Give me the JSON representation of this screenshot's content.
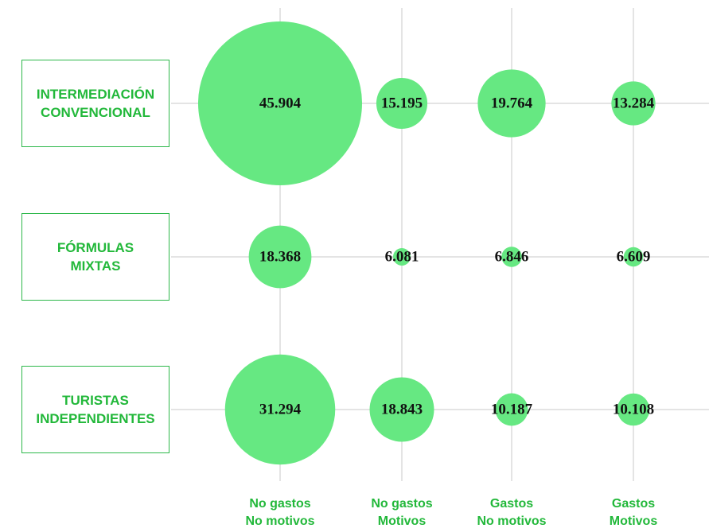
{
  "chart_data": {
    "type": "bubble",
    "categories": [
      "No gastos\nNo motivos",
      "No gastos\nMotivos",
      "Gastos\nNo motivos",
      "Gastos\nMotivos"
    ],
    "color": "#66e882",
    "series": [
      {
        "name": "INTERMEDIACIÓN\nCONVENCIONAL",
        "values": [
          45904,
          15195,
          19764,
          13284
        ],
        "value_labels": [
          "45.904",
          "15.195",
          "19.764",
          "13.284"
        ]
      },
      {
        "name": "FÓRMULAS\nMIXTAS",
        "values": [
          18368,
          6081,
          6846,
          6609
        ],
        "value_labels": [
          "18.368",
          "6.081",
          "6.846",
          "6.609"
        ]
      },
      {
        "name": "TURISTAS\nINDEPENDIENTES",
        "values": [
          31294,
          18843,
          10187,
          10108
        ],
        "value_labels": [
          "31.294",
          "18.843",
          "10.187",
          "10.108"
        ]
      }
    ]
  }
}
